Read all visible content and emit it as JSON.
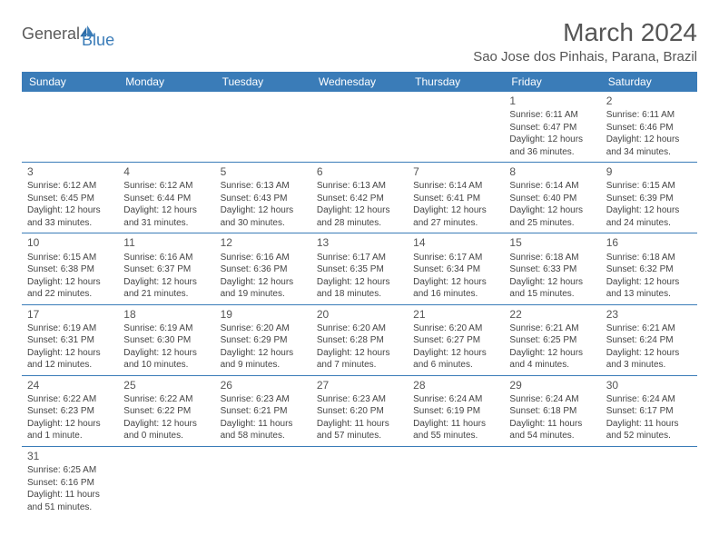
{
  "brand": {
    "part1": "General",
    "part2": "Blue"
  },
  "header": {
    "month_title": "March 2024",
    "location": "Sao Jose dos Pinhais, Parana, Brazil"
  },
  "colors": {
    "header_bg": "#3a7cb8",
    "header_text": "#ffffff",
    "border": "#3a7cb8",
    "body_text": "#444",
    "title_text": "#555"
  },
  "day_names": [
    "Sunday",
    "Monday",
    "Tuesday",
    "Wednesday",
    "Thursday",
    "Friday",
    "Saturday"
  ],
  "weeks": [
    [
      null,
      null,
      null,
      null,
      null,
      {
        "d": "1",
        "sunrise": "Sunrise: 6:11 AM",
        "sunset": "Sunset: 6:47 PM",
        "daylight1": "Daylight: 12 hours",
        "daylight2": "and 36 minutes."
      },
      {
        "d": "2",
        "sunrise": "Sunrise: 6:11 AM",
        "sunset": "Sunset: 6:46 PM",
        "daylight1": "Daylight: 12 hours",
        "daylight2": "and 34 minutes."
      }
    ],
    [
      {
        "d": "3",
        "sunrise": "Sunrise: 6:12 AM",
        "sunset": "Sunset: 6:45 PM",
        "daylight1": "Daylight: 12 hours",
        "daylight2": "and 33 minutes."
      },
      {
        "d": "4",
        "sunrise": "Sunrise: 6:12 AM",
        "sunset": "Sunset: 6:44 PM",
        "daylight1": "Daylight: 12 hours",
        "daylight2": "and 31 minutes."
      },
      {
        "d": "5",
        "sunrise": "Sunrise: 6:13 AM",
        "sunset": "Sunset: 6:43 PM",
        "daylight1": "Daylight: 12 hours",
        "daylight2": "and 30 minutes."
      },
      {
        "d": "6",
        "sunrise": "Sunrise: 6:13 AM",
        "sunset": "Sunset: 6:42 PM",
        "daylight1": "Daylight: 12 hours",
        "daylight2": "and 28 minutes."
      },
      {
        "d": "7",
        "sunrise": "Sunrise: 6:14 AM",
        "sunset": "Sunset: 6:41 PM",
        "daylight1": "Daylight: 12 hours",
        "daylight2": "and 27 minutes."
      },
      {
        "d": "8",
        "sunrise": "Sunrise: 6:14 AM",
        "sunset": "Sunset: 6:40 PM",
        "daylight1": "Daylight: 12 hours",
        "daylight2": "and 25 minutes."
      },
      {
        "d": "9",
        "sunrise": "Sunrise: 6:15 AM",
        "sunset": "Sunset: 6:39 PM",
        "daylight1": "Daylight: 12 hours",
        "daylight2": "and 24 minutes."
      }
    ],
    [
      {
        "d": "10",
        "sunrise": "Sunrise: 6:15 AM",
        "sunset": "Sunset: 6:38 PM",
        "daylight1": "Daylight: 12 hours",
        "daylight2": "and 22 minutes."
      },
      {
        "d": "11",
        "sunrise": "Sunrise: 6:16 AM",
        "sunset": "Sunset: 6:37 PM",
        "daylight1": "Daylight: 12 hours",
        "daylight2": "and 21 minutes."
      },
      {
        "d": "12",
        "sunrise": "Sunrise: 6:16 AM",
        "sunset": "Sunset: 6:36 PM",
        "daylight1": "Daylight: 12 hours",
        "daylight2": "and 19 minutes."
      },
      {
        "d": "13",
        "sunrise": "Sunrise: 6:17 AM",
        "sunset": "Sunset: 6:35 PM",
        "daylight1": "Daylight: 12 hours",
        "daylight2": "and 18 minutes."
      },
      {
        "d": "14",
        "sunrise": "Sunrise: 6:17 AM",
        "sunset": "Sunset: 6:34 PM",
        "daylight1": "Daylight: 12 hours",
        "daylight2": "and 16 minutes."
      },
      {
        "d": "15",
        "sunrise": "Sunrise: 6:18 AM",
        "sunset": "Sunset: 6:33 PM",
        "daylight1": "Daylight: 12 hours",
        "daylight2": "and 15 minutes."
      },
      {
        "d": "16",
        "sunrise": "Sunrise: 6:18 AM",
        "sunset": "Sunset: 6:32 PM",
        "daylight1": "Daylight: 12 hours",
        "daylight2": "and 13 minutes."
      }
    ],
    [
      {
        "d": "17",
        "sunrise": "Sunrise: 6:19 AM",
        "sunset": "Sunset: 6:31 PM",
        "daylight1": "Daylight: 12 hours",
        "daylight2": "and 12 minutes."
      },
      {
        "d": "18",
        "sunrise": "Sunrise: 6:19 AM",
        "sunset": "Sunset: 6:30 PM",
        "daylight1": "Daylight: 12 hours",
        "daylight2": "and 10 minutes."
      },
      {
        "d": "19",
        "sunrise": "Sunrise: 6:20 AM",
        "sunset": "Sunset: 6:29 PM",
        "daylight1": "Daylight: 12 hours",
        "daylight2": "and 9 minutes."
      },
      {
        "d": "20",
        "sunrise": "Sunrise: 6:20 AM",
        "sunset": "Sunset: 6:28 PM",
        "daylight1": "Daylight: 12 hours",
        "daylight2": "and 7 minutes."
      },
      {
        "d": "21",
        "sunrise": "Sunrise: 6:20 AM",
        "sunset": "Sunset: 6:27 PM",
        "daylight1": "Daylight: 12 hours",
        "daylight2": "and 6 minutes."
      },
      {
        "d": "22",
        "sunrise": "Sunrise: 6:21 AM",
        "sunset": "Sunset: 6:25 PM",
        "daylight1": "Daylight: 12 hours",
        "daylight2": "and 4 minutes."
      },
      {
        "d": "23",
        "sunrise": "Sunrise: 6:21 AM",
        "sunset": "Sunset: 6:24 PM",
        "daylight1": "Daylight: 12 hours",
        "daylight2": "and 3 minutes."
      }
    ],
    [
      {
        "d": "24",
        "sunrise": "Sunrise: 6:22 AM",
        "sunset": "Sunset: 6:23 PM",
        "daylight1": "Daylight: 12 hours",
        "daylight2": "and 1 minute."
      },
      {
        "d": "25",
        "sunrise": "Sunrise: 6:22 AM",
        "sunset": "Sunset: 6:22 PM",
        "daylight1": "Daylight: 12 hours",
        "daylight2": "and 0 minutes."
      },
      {
        "d": "26",
        "sunrise": "Sunrise: 6:23 AM",
        "sunset": "Sunset: 6:21 PM",
        "daylight1": "Daylight: 11 hours",
        "daylight2": "and 58 minutes."
      },
      {
        "d": "27",
        "sunrise": "Sunrise: 6:23 AM",
        "sunset": "Sunset: 6:20 PM",
        "daylight1": "Daylight: 11 hours",
        "daylight2": "and 57 minutes."
      },
      {
        "d": "28",
        "sunrise": "Sunrise: 6:24 AM",
        "sunset": "Sunset: 6:19 PM",
        "daylight1": "Daylight: 11 hours",
        "daylight2": "and 55 minutes."
      },
      {
        "d": "29",
        "sunrise": "Sunrise: 6:24 AM",
        "sunset": "Sunset: 6:18 PM",
        "daylight1": "Daylight: 11 hours",
        "daylight2": "and 54 minutes."
      },
      {
        "d": "30",
        "sunrise": "Sunrise: 6:24 AM",
        "sunset": "Sunset: 6:17 PM",
        "daylight1": "Daylight: 11 hours",
        "daylight2": "and 52 minutes."
      }
    ],
    [
      {
        "d": "31",
        "sunrise": "Sunrise: 6:25 AM",
        "sunset": "Sunset: 6:16 PM",
        "daylight1": "Daylight: 11 hours",
        "daylight2": "and 51 minutes."
      },
      null,
      null,
      null,
      null,
      null,
      null
    ]
  ]
}
